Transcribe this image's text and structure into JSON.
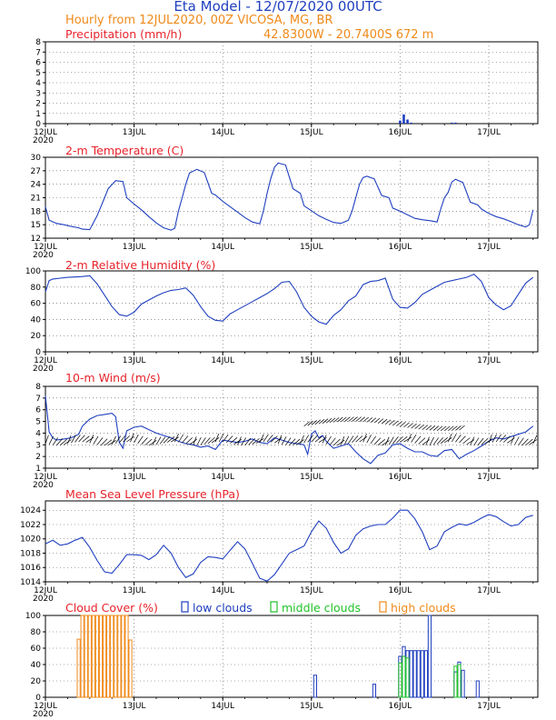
{
  "header": {
    "title": "Eta Model - 12/07/2020 00UTC",
    "subtitle": "Hourly from 12JUL2020, 00Z  VICOSA, MG, BR",
    "location": "42.8300W - 20.7400S      672  m"
  },
  "x_axis": {
    "ticks": [
      "12JUL",
      "13JUL",
      "14JUL",
      "15JUL",
      "16JUL",
      "17JUL"
    ],
    "year_label": "2020",
    "hours_range": [
      0,
      132
    ]
  },
  "colors": {
    "series": "#1f3fbf",
    "title": "#e8232b",
    "low": "#1f3fbf",
    "middle": "#22c22a",
    "high": "#f08a1a"
  },
  "chart_data": [
    {
      "id": "precip",
      "type": "bar",
      "title": "Precipitation (mm/h)",
      "ylim": [
        0,
        8
      ],
      "yticks": [
        0,
        1,
        2,
        3,
        4,
        5,
        6,
        7,
        8
      ],
      "x_hours": [
        96,
        97,
        98,
        99,
        110,
        111
      ],
      "values": [
        0.3,
        0.9,
        0.4,
        0.1,
        0.1,
        0.1
      ]
    },
    {
      "id": "temp",
      "type": "line",
      "title": "2-m Temperature (C)",
      "ylim": [
        12,
        30
      ],
      "yticks": [
        12,
        15,
        18,
        21,
        24,
        27,
        30
      ],
      "x": [
        0,
        1,
        3,
        5,
        7,
        9,
        10,
        12,
        14,
        15,
        16,
        17,
        19,
        21,
        22,
        24,
        26,
        28,
        30,
        32,
        34,
        35,
        36,
        37,
        38,
        39,
        41,
        43,
        45,
        46,
        48,
        50,
        52,
        54,
        56,
        58,
        59,
        60,
        61,
        62,
        63,
        65,
        67,
        69,
        70,
        72,
        74,
        76,
        78,
        80,
        82,
        83,
        84,
        85,
        86,
        87,
        89,
        91,
        93,
        94,
        96,
        98,
        100,
        102,
        104,
        106,
        107,
        108,
        109,
        110,
        111,
        113,
        115,
        117,
        118,
        120,
        122,
        124,
        126,
        128,
        130,
        131,
        132
      ],
      "values": [
        19,
        16,
        15.3,
        15,
        14.6,
        14.3,
        14,
        13.9,
        17,
        19,
        21,
        23,
        24.8,
        24.6,
        21,
        19.6,
        18.3,
        16.8,
        15.4,
        14.3,
        13.8,
        14.2,
        18,
        21,
        24,
        26.5,
        27.3,
        26.6,
        22,
        21.6,
        20.2,
        19,
        17.8,
        16.6,
        15.6,
        15.2,
        18,
        22,
        25.3,
        27.8,
        28.7,
        28.3,
        23,
        22,
        19.2,
        18.1,
        17,
        16.2,
        15.5,
        15.3,
        16,
        18,
        21,
        24,
        25.5,
        25.8,
        25.2,
        21.5,
        21,
        18.7,
        18,
        17.2,
        16.4,
        16.1,
        15.9,
        15.6,
        18.5,
        21,
        22.2,
        24.5,
        25.1,
        24.4,
        20,
        19.4,
        18.5,
        17.5,
        16.8,
        16.3,
        15.7,
        15,
        14.5,
        15,
        18.3
      ]
    },
    {
      "id": "rh",
      "type": "line",
      "title": "2-m Relative Humidity (%)",
      "ylim": [
        0,
        100
      ],
      "yticks": [
        0,
        20,
        40,
        60,
        80,
        100
      ],
      "x": [
        0,
        1,
        2,
        4,
        6,
        8,
        10,
        12,
        14,
        16,
        18,
        20,
        22,
        24,
        26,
        28,
        30,
        32,
        34,
        36,
        38,
        40,
        42,
        44,
        46,
        48,
        50,
        52,
        54,
        56,
        58,
        60,
        62,
        64,
        66,
        68,
        70,
        72,
        74,
        76,
        78,
        80,
        82,
        84,
        86,
        88,
        90,
        92,
        94,
        96,
        98,
        100,
        102,
        104,
        106,
        108,
        110,
        112,
        114,
        116,
        118,
        120,
        122,
        124,
        126,
        128,
        130,
        132
      ],
      "values": [
        74,
        88,
        90,
        91,
        92,
        92.5,
        93,
        94,
        84,
        70,
        56,
        46,
        44,
        49,
        59,
        64,
        69,
        73,
        76,
        77,
        79,
        70,
        56,
        44,
        39,
        38,
        47,
        52,
        57,
        62,
        67,
        72,
        78,
        86,
        87,
        74,
        55,
        44,
        37,
        34,
        45,
        52,
        63,
        69,
        83,
        87,
        88,
        91,
        65,
        55,
        54,
        61,
        71,
        76,
        81,
        86,
        88,
        90,
        92,
        96,
        87,
        67,
        58,
        52,
        57,
        71,
        85,
        92
      ]
    },
    {
      "id": "wind",
      "type": "line",
      "title": "10-m Wind (m/s)",
      "ylim": [
        1,
        8
      ],
      "yticks": [
        1,
        2,
        3,
        4,
        5,
        6,
        7,
        8
      ],
      "x": [
        0,
        1,
        2,
        3,
        5,
        7,
        9,
        10,
        12,
        14,
        16,
        18,
        19,
        20,
        21,
        22,
        24,
        26,
        28,
        30,
        32,
        34,
        36,
        38,
        40,
        42,
        44,
        46,
        48,
        50,
        52,
        54,
        56,
        58,
        60,
        62,
        64,
        66,
        68,
        70,
        71,
        72,
        73,
        74,
        75,
        76,
        78,
        80,
        82,
        84,
        86,
        88,
        90,
        92,
        94,
        96,
        98,
        100,
        102,
        104,
        106,
        108,
        110,
        112,
        114,
        116,
        118,
        120,
        122,
        124,
        126,
        128,
        130,
        132
      ],
      "values": [
        7.2,
        4.1,
        3.6,
        3.4,
        3.5,
        3.6,
        3.9,
        4.6,
        5.2,
        5.5,
        5.6,
        5.7,
        5.4,
        3.2,
        2.7,
        4.2,
        4.5,
        4.6,
        4.3,
        4.0,
        3.8,
        3.6,
        3.3,
        3.1,
        3.0,
        2.8,
        2.9,
        2.6,
        3.4,
        3.3,
        3.2,
        3.3,
        3.5,
        3.2,
        3.1,
        3.6,
        3.4,
        3.2,
        3.1,
        3.0,
        2.2,
        3.9,
        4.2,
        3.6,
        3.8,
        3.3,
        2.7,
        2.9,
        3.1,
        2.4,
        1.8,
        1.4,
        2.1,
        2.3,
        3.0,
        3.1,
        2.7,
        2.4,
        2.4,
        2.1,
        2.0,
        2.5,
        2.6,
        1.8,
        2.2,
        2.5,
        2.9,
        3.3,
        3.6,
        3.5,
        3.7,
        3.9,
        4.1,
        4.6
      ],
      "barbs": "wind barbs along the series"
    },
    {
      "id": "mslp",
      "type": "line",
      "title": "Mean Sea Level Pressure (hPa)",
      "ylim": [
        1014,
        1025.3
      ],
      "yticks": [
        1014,
        1016,
        1018,
        1020,
        1022,
        1024
      ],
      "x": [
        0,
        2,
        4,
        6,
        8,
        10,
        12,
        14,
        16,
        18,
        20,
        22,
        24,
        26,
        28,
        30,
        32,
        34,
        36,
        38,
        40,
        42,
        44,
        46,
        48,
        50,
        52,
        54,
        56,
        58,
        60,
        62,
        64,
        66,
        68,
        70,
        72,
        74,
        76,
        78,
        80,
        82,
        84,
        86,
        88,
        90,
        92,
        94,
        96,
        98,
        100,
        102,
        104,
        106,
        108,
        110,
        112,
        114,
        116,
        118,
        120,
        122,
        124,
        126,
        128,
        130,
        132
      ],
      "values": [
        1019.3,
        1019.8,
        1019.1,
        1019.3,
        1019.8,
        1020.2,
        1018.8,
        1017.0,
        1015.4,
        1015.2,
        1016.4,
        1017.8,
        1017.8,
        1017.7,
        1017.1,
        1017.8,
        1019.1,
        1018.0,
        1016.0,
        1014.6,
        1015.1,
        1016.7,
        1017.5,
        1017.4,
        1017.2,
        1018.4,
        1019.6,
        1018.6,
        1016.6,
        1014.5,
        1014.1,
        1015.0,
        1016.5,
        1018.0,
        1018.5,
        1019.0,
        1021.0,
        1022.5,
        1021.5,
        1019.5,
        1018.0,
        1018.6,
        1020.5,
        1021.4,
        1021.8,
        1022.0,
        1022.0,
        1022.9,
        1024.0,
        1024.0,
        1022.8,
        1021.0,
        1018.5,
        1019.0,
        1021.0,
        1021.6,
        1022.1,
        1021.9,
        1022.3,
        1022.9,
        1023.4,
        1023.1,
        1022.4,
        1021.8,
        1022.0,
        1023.0,
        1023.3
      ]
    },
    {
      "id": "cloud",
      "type": "bar",
      "title": "Cloud Cover (%)",
      "ylim": [
        0,
        100
      ],
      "yticks": [
        0,
        20,
        40,
        60,
        80,
        100
      ],
      "legend": [
        "low clouds",
        "middle clouds",
        "high clouds"
      ],
      "high": {
        "x": [
          9,
          10,
          11,
          12,
          13,
          14,
          15,
          16,
          17,
          18,
          19,
          20,
          21,
          22,
          23
        ],
        "values": [
          71,
          100,
          100,
          100,
          100,
          100,
          100,
          100,
          100,
          100,
          100,
          100,
          100,
          100,
          70
        ]
      },
      "low": {
        "x": [
          73,
          89,
          96,
          97,
          98,
          99,
          100,
          101,
          102,
          103,
          104,
          111,
          112,
          113,
          117
        ],
        "values": [
          27,
          16,
          50,
          62,
          57,
          57,
          57,
          57,
          57,
          57,
          100,
          31,
          43,
          33,
          20
        ]
      },
      "middle": {
        "x": [
          96,
          97,
          98,
          111,
          112
        ],
        "values": [
          42,
          50,
          48,
          38,
          40
        ]
      }
    }
  ]
}
